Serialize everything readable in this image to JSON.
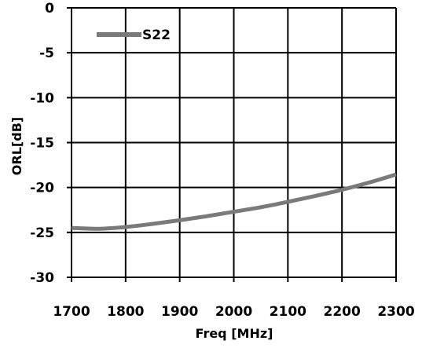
{
  "chart_data": {
    "type": "line",
    "title": "",
    "xlabel": "Freq [MHz]",
    "ylabel": "ORL[dB]",
    "xlim": [
      1700,
      2300
    ],
    "ylim": [
      -30,
      0
    ],
    "x_ticks": [
      "1700",
      "1800",
      "1900",
      "2000",
      "2100",
      "2200",
      "2300"
    ],
    "y_ticks": [
      "0",
      "-5",
      "-10",
      "-15",
      "-20",
      "-25",
      "-30"
    ],
    "grid": true,
    "legend_position": "top-left",
    "series": [
      {
        "name": "S22",
        "color": "#7a7a7a",
        "x": [
          1700,
          1750,
          1800,
          1850,
          1900,
          1950,
          2000,
          2050,
          2100,
          2150,
          2200,
          2250,
          2300
        ],
        "y": [
          -24.5,
          -24.6,
          -24.4,
          -24.05,
          -23.65,
          -23.2,
          -22.7,
          -22.2,
          -21.6,
          -20.95,
          -20.25,
          -19.45,
          -18.55
        ]
      }
    ]
  }
}
